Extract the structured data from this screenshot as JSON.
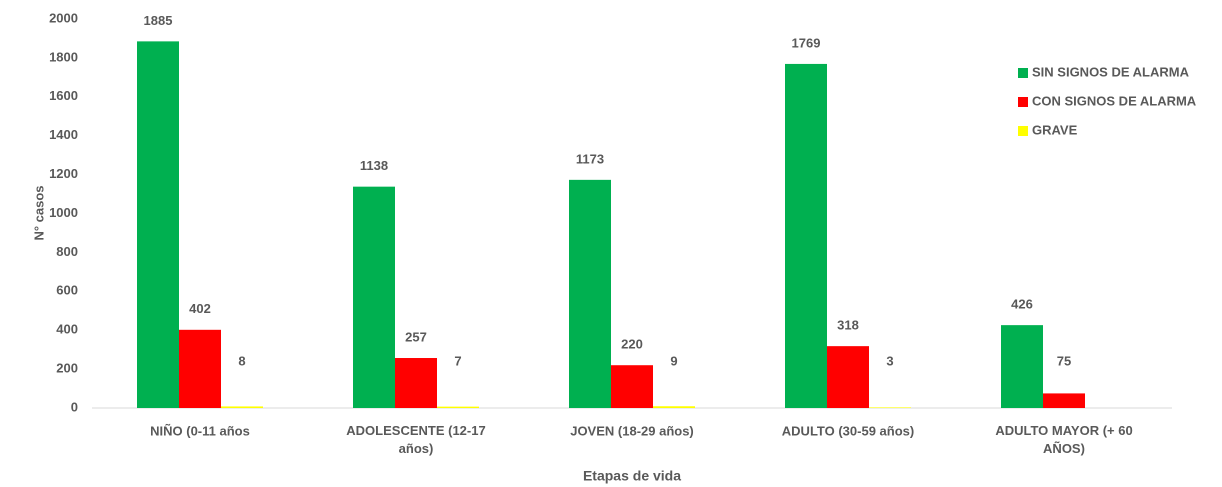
{
  "chart_data": {
    "type": "bar",
    "x_label": "Etapas de vida",
    "y_label": "N° casos",
    "categories": [
      "NIÑO (0-11 años",
      "ADOLESCENTE (12-17 años)",
      "JOVEN (18-29 años)",
      "ADULTO (30-59 años)",
      "ADULTO MAYOR (+ 60 AÑOS)"
    ],
    "series": [
      {
        "name": "SIN SIGNOS DE ALARMA",
        "color": "#00b050",
        "values": [
          1885,
          1138,
          1173,
          1769,
          426
        ]
      },
      {
        "name": "CON SIGNOS DE ALARMA",
        "color": "#ff0000",
        "values": [
          402,
          257,
          220,
          318,
          75
        ]
      },
      {
        "name": "GRAVE",
        "color": "#ffff00",
        "values": [
          8,
          7,
          9,
          3,
          null
        ]
      }
    ],
    "ylim": [
      0,
      2000
    ],
    "yticks": [
      0,
      200,
      400,
      600,
      800,
      1000,
      1200,
      1400,
      1600,
      1800,
      2000
    ],
    "legend": "right"
  }
}
